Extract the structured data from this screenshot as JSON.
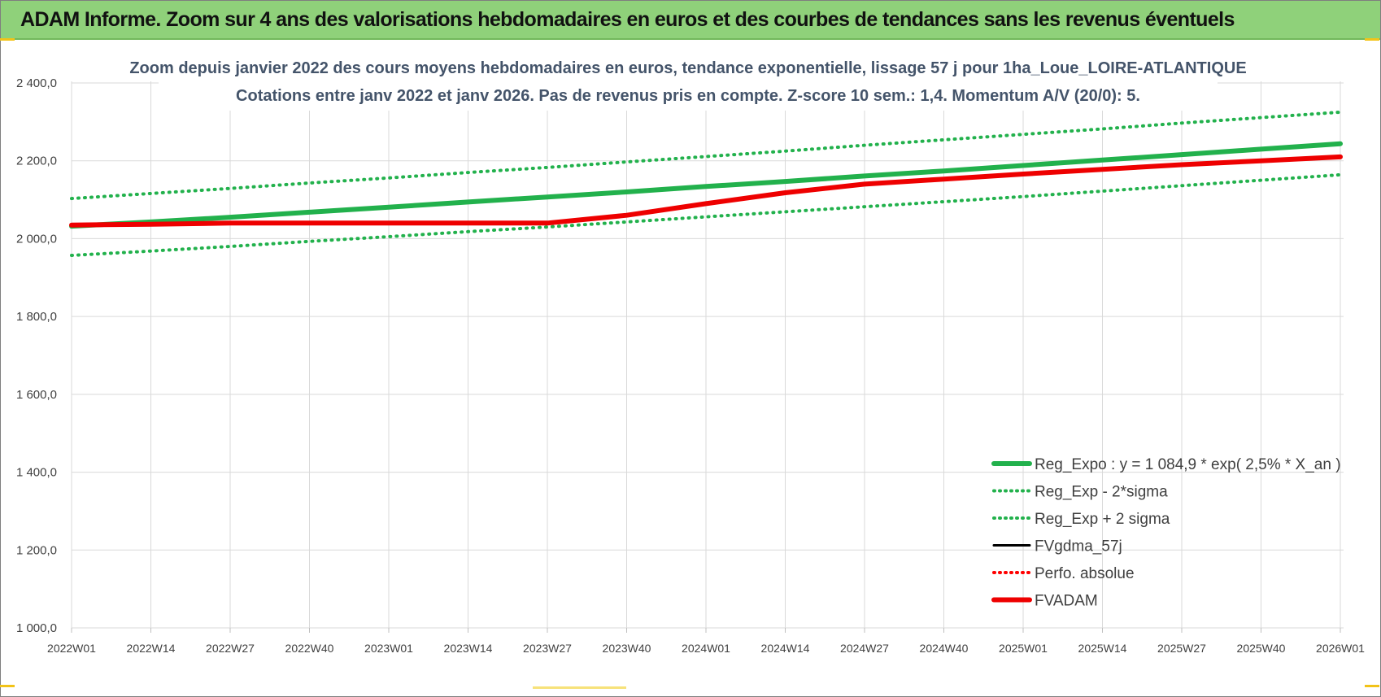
{
  "page": {
    "header_title": "ADAM Informe. Zoom sur 4 ans des valorisations hebdomadaires en euros et des courbes de tendances sans les revenus éventuels"
  },
  "chart_data": {
    "type": "line",
    "title": "Zoom depuis janvier 2022 des cours moyens hebdomadaires en euros, tendance exponentielle, lissage 57 j pour 1ha_Loue_LOIRE-ATLANTIQUE",
    "subtitle": "Cotations entre janv 2022 et janv 2026. Pas de revenus pris en compte. Z-score 10 sem.: 1,4. Momentum A/V (20/0): 5.",
    "xlabel": "",
    "ylabel": "",
    "ylim": [
      1000,
      2400
    ],
    "yticks": [
      1000,
      1200,
      1400,
      1600,
      1800,
      2000,
      2200,
      2400
    ],
    "ytick_labels": [
      "1 000,0",
      "1 200,0",
      "1 400,0",
      "1 600,0",
      "1 800,0",
      "2 000,0",
      "2 200,0",
      "2 400,0"
    ],
    "grid": true,
    "legend_position": "bottom-right",
    "categories": [
      "2022W01",
      "2022W14",
      "2022W27",
      "2022W40",
      "2023W01",
      "2023W14",
      "2023W27",
      "2023W40",
      "2024W01",
      "2024W14",
      "2024W27",
      "2024W40",
      "2025W01",
      "2025W14",
      "2025W27",
      "2025W40",
      "2026W01"
    ],
    "series": [
      {
        "name": "Reg_Expo : y = 1 084,9 * exp( 2,5% *  X_an )",
        "color": "#22b14c",
        "style": "solid-thick",
        "values": [
          2032,
          2043,
          2055,
          2068,
          2081,
          2094,
          2107,
          2120,
          2134,
          2147,
          2161,
          2174,
          2188,
          2202,
          2216,
          2230,
          2244
        ]
      },
      {
        "name": "Reg_Exp - 2*sigma",
        "color": "#22b14c",
        "style": "dotted",
        "values": [
          1957,
          1968,
          1980,
          1993,
          2005,
          2018,
          2030,
          2043,
          2056,
          2069,
          2082,
          2095,
          2108,
          2122,
          2136,
          2150,
          2164
        ]
      },
      {
        "name": "Reg_Exp + 2 sigma",
        "color": "#22b14c",
        "style": "dotted",
        "values": [
          2103,
          2116,
          2129,
          2143,
          2156,
          2170,
          2183,
          2197,
          2211,
          2225,
          2240,
          2254,
          2268,
          2282,
          2297,
          2311,
          2325
        ]
      },
      {
        "name": "FVgdma_57j",
        "color": "#000000",
        "style": "solid",
        "values": [
          2035,
          2037,
          2040,
          2040,
          2040,
          2040,
          2040,
          2060,
          2092,
          2120,
          2142,
          2155,
          2168,
          2180,
          2192,
          2202,
          2212
        ]
      },
      {
        "name": "Perfo. absolue",
        "color": "#ff0000",
        "style": "dotted",
        "values": [
          2035,
          2037,
          2040,
          2040,
          2040,
          2040,
          2040,
          2060,
          2090,
          2118,
          2140,
          2153,
          2166,
          2178,
          2190,
          2200,
          2210
        ]
      },
      {
        "name": "FVADAM",
        "color": "#ee0000",
        "style": "solid-thick",
        "values": [
          2035,
          2037,
          2040,
          2040,
          2040,
          2040,
          2040,
          2060,
          2090,
          2118,
          2140,
          2153,
          2166,
          2178,
          2190,
          2200,
          2210
        ]
      }
    ]
  }
}
